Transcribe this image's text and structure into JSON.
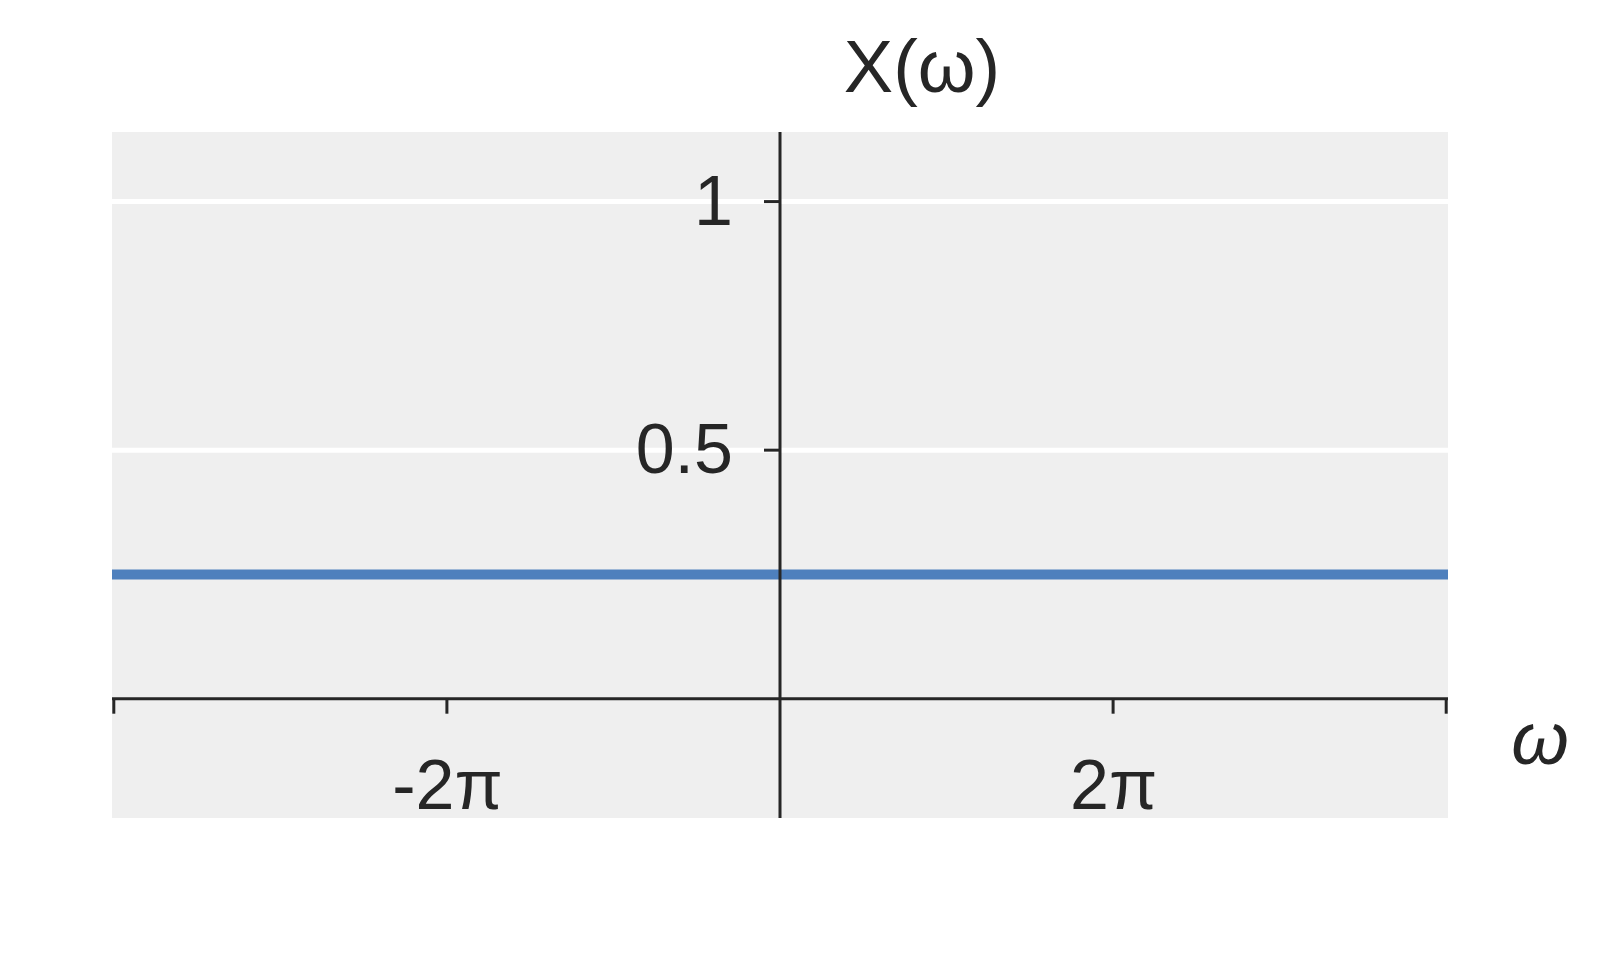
{
  "chart_data": {
    "type": "line",
    "xlabel": "ω",
    "ylabel": "X(ω)",
    "x": [
      -12.6,
      12.6
    ],
    "values": [
      0.25,
      0.25
    ],
    "color": "#4e80bd",
    "xlim": [
      -12.6,
      12.6
    ],
    "ylim": [
      -0.24,
      1.14
    ],
    "xticks": [
      {
        "value": -12.566,
        "label": null
      },
      {
        "value": -6.283,
        "label": "-2π"
      },
      {
        "value": 6.283,
        "label": "2π"
      },
      {
        "value": 12.566,
        "label": null
      }
    ],
    "yticks": [
      0.5,
      1
    ],
    "grid": "y"
  }
}
